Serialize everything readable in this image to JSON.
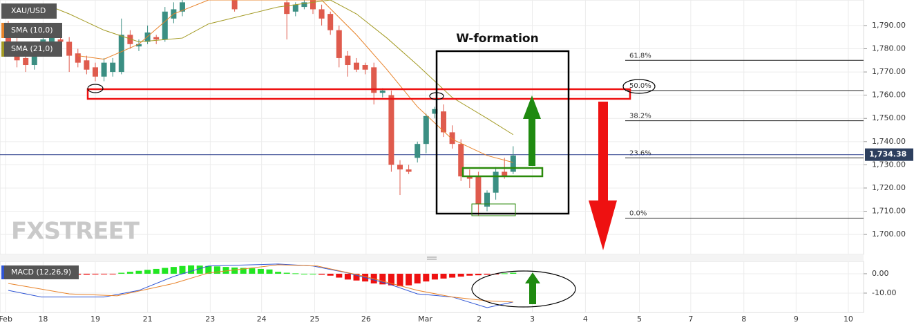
{
  "chart_data": {
    "type": "candlestick",
    "title": "XAU/USD",
    "watermark": "FXSTREET",
    "annotations": [
      "W-formation"
    ],
    "up_color": "#3b8f83",
    "down_color": "#df5b4d",
    "x": [
      0,
      1,
      2,
      3,
      4,
      5,
      6,
      7,
      8,
      9,
      10,
      11,
      12,
      13,
      14,
      15,
      16,
      17,
      18,
      19,
      20,
      26,
      32,
      33,
      34,
      35,
      36,
      37,
      38,
      39,
      40,
      41,
      42,
      43,
      44,
      45,
      46,
      47,
      48,
      49,
      50,
      51,
      52,
      53,
      54,
      55,
      56,
      57,
      58
    ],
    "open": [
      1789,
      1783,
      1776,
      1773,
      1780,
      1783,
      1784,
      1783,
      1778,
      1775,
      1772,
      1768,
      1770,
      1770,
      1786,
      1781,
      1783,
      1785,
      1784,
      1793,
      1796,
      1801,
      1800,
      1796,
      1798,
      1801,
      1797,
      1795,
      1788,
      1777,
      1774,
      1773,
      1772,
      1761,
      1760,
      1730,
      1728,
      1733,
      1739,
      1752,
      1753,
      1744,
      1739,
      1725,
      1725,
      1712,
      1718,
      1727,
      1727
    ],
    "high": [
      1792,
      1785,
      1778,
      1783,
      1786,
      1787,
      1786,
      1785,
      1780,
      1777,
      1774,
      1776,
      1776,
      1793,
      1788,
      1784,
      1790,
      1786,
      1798,
      1800,
      1801,
      1801,
      1801,
      1800,
      1801,
      1801,
      1799,
      1796,
      1790,
      1779,
      1776,
      1774,
      1774,
      1763,
      1762,
      1732,
      1730,
      1740,
      1752,
      1755,
      1756,
      1747,
      1741,
      1728,
      1727,
      1719,
      1729,
      1733,
      1738
    ],
    "low": [
      1780,
      1772,
      1770,
      1771,
      1778,
      1782,
      1781,
      1770,
      1772,
      1769,
      1766,
      1766,
      1768,
      1769,
      1780,
      1779,
      1782,
      1782,
      1783,
      1791,
      1794,
      1796,
      1784,
      1794,
      1797,
      1795,
      1790,
      1786,
      1772,
      1768,
      1770,
      1769,
      1756,
      1759,
      1727,
      1717,
      1726,
      1731,
      1735,
      1750,
      1742,
      1737,
      1723,
      1720,
      1708,
      1710,
      1715,
      1724,
      1726
    ],
    "close": [
      1783,
      1775,
      1773,
      1780,
      1784,
      1785,
      1783,
      1777,
      1774,
      1771,
      1768,
      1774,
      1774,
      1786,
      1782,
      1782,
      1787,
      1784,
      1796,
      1797,
      1800,
      1797,
      1795,
      1799,
      1800,
      1797,
      1793,
      1788,
      1776,
      1773,
      1771,
      1771,
      1761,
      1762,
      1730,
      1728,
      1727,
      1739,
      1751,
      1754,
      1744,
      1739,
      1725,
      1724,
      1713,
      1718,
      1727,
      1725,
      1734
    ],
    "xlim": [
      -0.95,
      98.25
    ],
    "xticks": [
      {
        "value": -0.3,
        "label": "Feb"
      },
      {
        "value": 4,
        "label": "18"
      },
      {
        "value": 10,
        "label": "19"
      },
      {
        "value": 16,
        "label": "21"
      },
      {
        "value": 23.2,
        "label": "23"
      },
      {
        "value": 29.1,
        "label": "24"
      },
      {
        "value": 35.2,
        "label": "25"
      },
      {
        "value": 41.1,
        "label": "26"
      },
      {
        "value": 47.9,
        "label": "Mar"
      },
      {
        "value": 54.1,
        "label": "2"
      },
      {
        "value": 60.2,
        "label": "3"
      },
      {
        "value": 66.3,
        "label": "4"
      },
      {
        "value": 72.5,
        "label": "5"
      },
      {
        "value": 78.4,
        "label": "7"
      },
      {
        "value": 84.5,
        "label": "8"
      },
      {
        "value": 90.5,
        "label": "9"
      },
      {
        "value": 96.5,
        "label": "10"
      }
    ],
    "ylim": [
      1691.4,
      1801
    ],
    "yticks": [
      {
        "value": 1700,
        "label": "1,700.00"
      },
      {
        "value": 1710,
        "label": "1,710.00"
      },
      {
        "value": 1720,
        "label": "1,720.00"
      },
      {
        "value": 1730,
        "label": "1,730.00"
      },
      {
        "value": 1740,
        "label": "1,740.00"
      },
      {
        "value": 1750,
        "label": "1,750.00"
      },
      {
        "value": 1760,
        "label": "1,760.00"
      },
      {
        "value": 1770,
        "label": "1,770.00"
      },
      {
        "value": 1780,
        "label": "1,780.00"
      },
      {
        "value": 1790,
        "label": "1,790.00"
      }
    ],
    "grid": true,
    "current_price": {
      "value": 1734.38,
      "label": "1,734.38"
    },
    "overlays": [
      {
        "name": "SMA (10,0)",
        "color": "#e8832a",
        "x": [
          8,
          11,
          15,
          19,
          23,
          36,
          40,
          43.5,
          47,
          51,
          55,
          58
        ],
        "values": [
          1777,
          1775.5,
          1782,
          1795,
          1801,
          1801,
          1786,
          1771,
          1755,
          1741,
          1734,
          1731
        ]
      },
      {
        "name": "SMA (21,0)",
        "color": "#a39a23",
        "x": [
          4,
          7,
          11,
          15,
          20,
          23,
          31,
          37,
          40,
          43.5,
          47,
          51,
          55,
          58
        ],
        "values": [
          1799.5,
          1795,
          1788,
          1783,
          1784.6,
          1790.7,
          1798,
          1801,
          1795,
          1784.6,
          1773,
          1759,
          1750,
          1743
        ]
      }
    ],
    "fib_levels": [
      {
        "label": "61.8%",
        "value": 1775
      },
      {
        "label": "50.0%",
        "value": 1762
      },
      {
        "label": "38.2%",
        "value": 1749
      },
      {
        "label": "23.6%",
        "value": 1733
      },
      {
        "label": "0.0%",
        "value": 1707
      }
    ],
    "macd": {
      "name": "MACD (12,26,9)",
      "ylim": [
        -20,
        6.4
      ],
      "yticks": [
        {
          "value": 0,
          "label": "0.00"
        },
        {
          "value": -10,
          "label": "-10.00"
        }
      ],
      "hist_up_color": "#22e622",
      "hist_down_color": "#ee1111",
      "histogram": [
        -0.5,
        -0.6,
        -0.7,
        -0.8,
        -0.8,
        -0.7,
        -0.6,
        -0.6,
        -0.5,
        -0.5,
        -0.4,
        -0.3,
        -0.2,
        0.5,
        1,
        1.5,
        2,
        2.5,
        3,
        3.5,
        4,
        4.3,
        4.2,
        4,
        3.8,
        3.5,
        3.2,
        3,
        2.8,
        2.5,
        2.2,
        1,
        0.5,
        0.2,
        0,
        0,
        -0.5,
        -1,
        -2,
        -3,
        -3.5,
        -4,
        -5,
        -5.5,
        -6,
        -6.5,
        -6,
        -5,
        -4,
        -3,
        -2.5,
        -2,
        -1.5,
        -1,
        -0.8,
        -0.5,
        -0.3,
        0.2,
        0.5
      ],
      "series": [
        {
          "color": "#2f55d4",
          "x": [
            0,
            3.8,
            11,
            15,
            19,
            23,
            31,
            35,
            39,
            43.5,
            47,
            51,
            55,
            58
          ],
          "values": [
            -8.6,
            -12,
            -12,
            -8.6,
            -1.4,
            4,
            5,
            4,
            0.4,
            -5,
            -10.4,
            -12,
            -17.5,
            -14.6
          ]
        },
        {
          "color": "#e8832a",
          "x": [
            0,
            7,
            12.5,
            19,
            23,
            31,
            35.5,
            41,
            47,
            51,
            55,
            58
          ],
          "values": [
            -5,
            -10.4,
            -11.4,
            -5,
            0.4,
            4.6,
            4,
            -1.4,
            -8.6,
            -12,
            -14,
            -14.6
          ]
        }
      ]
    }
  }
}
